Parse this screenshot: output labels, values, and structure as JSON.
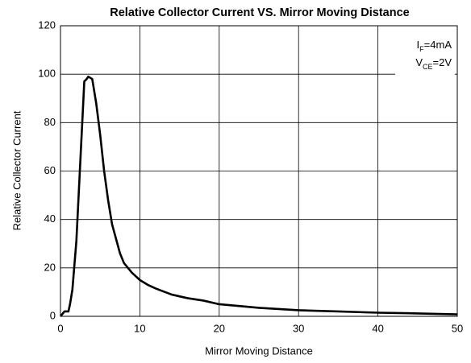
{
  "chart_data": {
    "type": "line",
    "title": "Relative Collector Current VS. Mirror Moving Distance",
    "x_label": "Mirror Moving Distance",
    "y_label": "Relative Collector Current",
    "annotations": [
      {
        "main": "I",
        "sub": "F",
        "after": "=4mA"
      },
      {
        "main": "V",
        "sub": "CE",
        "after": "=2V"
      }
    ],
    "x": [
      0,
      0.5,
      1,
      1.2,
      1.5,
      2,
      2.5,
      3,
      3.3,
      3.5,
      4,
      4.5,
      5,
      5.5,
      6,
      6.5,
      7,
      7.5,
      8,
      9,
      10,
      11,
      12,
      14,
      16,
      18,
      20,
      25,
      30,
      35,
      40,
      45,
      50
    ],
    "series": [
      {
        "name": "Relative Collector Current",
        "color": "#000000",
        "values": [
          0,
          2,
          2,
          5,
          11,
          31,
          64,
          97,
          98,
          99,
          98,
          88,
          75,
          60,
          48,
          38,
          32,
          26,
          22,
          18,
          15,
          13,
          11.5,
          9,
          7.5,
          6.5,
          5,
          3.5,
          2.5,
          2,
          1.5,
          1.2,
          0.8
        ]
      }
    ],
    "xlim": [
      0,
      50
    ],
    "xticks": [
      0,
      10,
      20,
      30,
      40,
      50
    ],
    "ylim": [
      0,
      120
    ],
    "yticks": [
      0,
      20,
      40,
      60,
      80,
      100,
      120
    ],
    "grid": true
  }
}
